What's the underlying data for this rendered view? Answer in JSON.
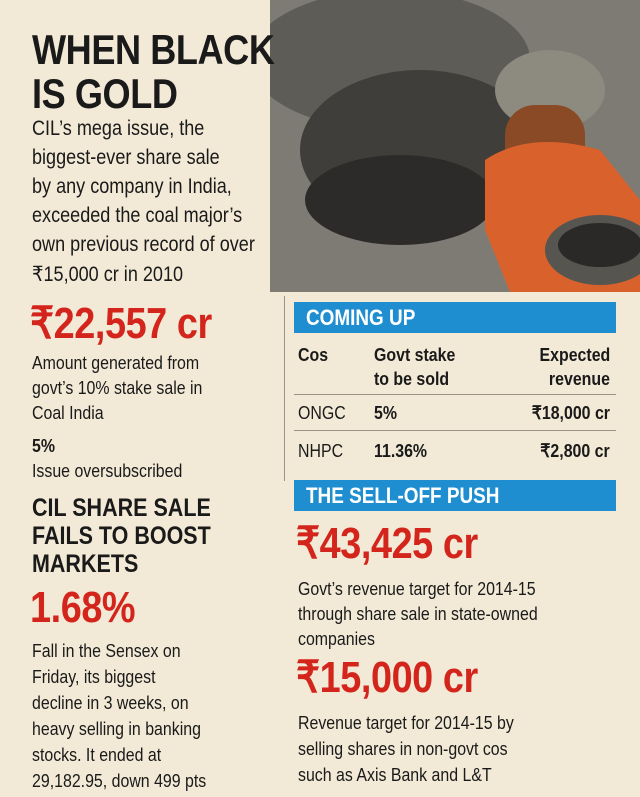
{
  "header": {
    "title": [
      "WHEN BLACK",
      "IS GOLD"
    ],
    "intro": [
      "CIL’s mega issue, the",
      "biggest-ever share sale",
      "by any company in India,",
      "exceeded the coal major’s",
      "own previous record of over",
      "₹15,000 cr in 2010"
    ]
  },
  "left": {
    "stats": [
      {
        "value": "₹22,557 cr",
        "text": [
          "Amount generated from",
          "govt’s 10% stake sale in",
          "Coal India"
        ]
      },
      {
        "value": "5%",
        "text": [
          "Issue oversubscribed"
        ]
      },
      {
        "value": "1.68%",
        "text": [
          "Fall in the Sensex on",
          "Friday, its biggest",
          "decline in 3 weeks, on",
          "heavy selling in banking",
          "stocks. It ended at",
          "29,182.95, down 499 pts"
        ]
      }
    ],
    "heading": [
      "CIL SHARE SALE",
      "FAILS TO BOOST",
      "MARKETS"
    ]
  },
  "coming_up": {
    "title": "COMING UP",
    "table": {
      "header": [
        [
          "Cos"
        ],
        [
          "Govt stake",
          "to be sold"
        ],
        [
          "Expected",
          "revenue"
        ]
      ],
      "rows": [
        [
          "ONGC",
          "5%",
          "₹18,000 cr"
        ],
        [
          "NHPC",
          "11.36%",
          "₹2,800 cr"
        ]
      ]
    }
  },
  "sell_off": {
    "title": "THE SELL-OFF PUSH",
    "stats": [
      {
        "value": "₹43,425 cr",
        "text": [
          "Govt’s revenue target for 2014-15",
          "through share sale in state-owned",
          "companies"
        ]
      },
      {
        "value": "₹15,000 cr",
        "text": [
          "Revenue target for 2014-15 by",
          "selling shares in non-govt cos",
          "such as Axis Bank and L&T"
        ]
      }
    ]
  }
}
